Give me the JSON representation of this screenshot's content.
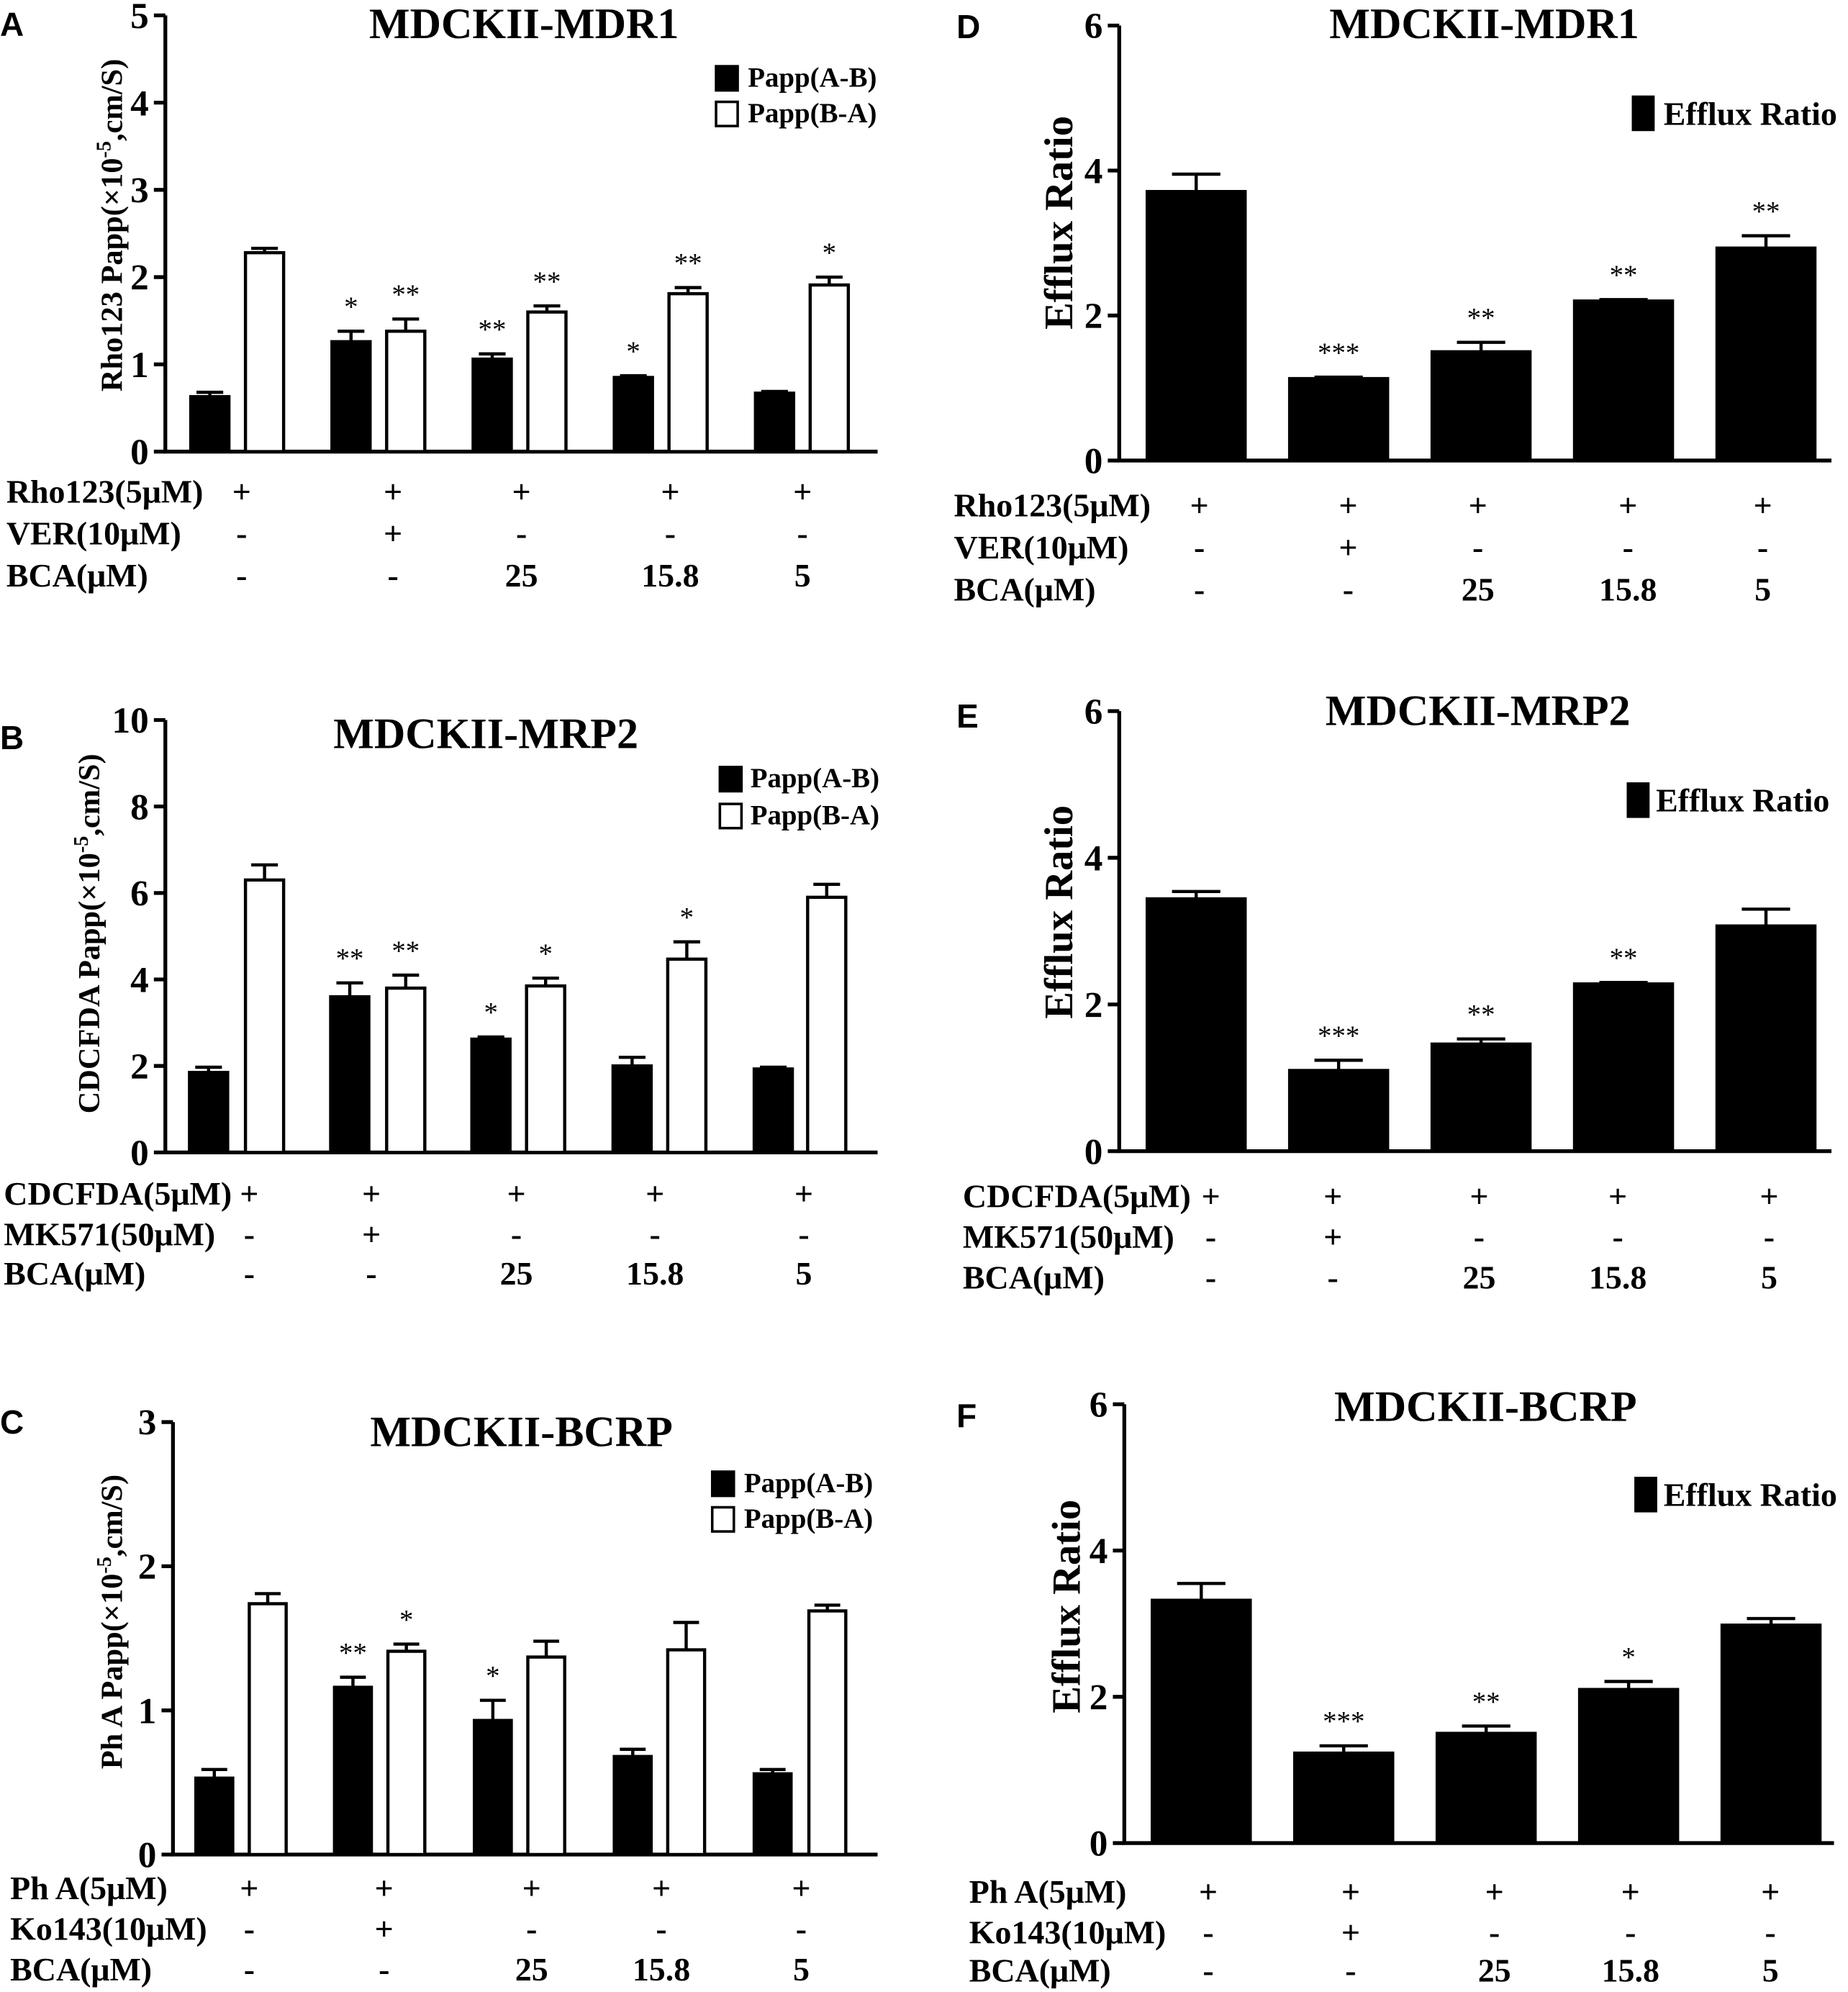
{
  "chart_data": [
    {
      "panel": "A",
      "type": "bar",
      "title": "MDCKII-MDR1",
      "ylabel": {
        "text": "Rho123 Papp(×10",
        "sup": "-5",
        "tail": ",cm/S)"
      },
      "ylim": [
        0,
        5
      ],
      "yticks": [
        0,
        1,
        2,
        3,
        4,
        5
      ],
      "series": [
        {
          "name": "Papp(A-B)",
          "fill": "#000000",
          "values": [
            0.63,
            1.26,
            1.06,
            0.85,
            0.67
          ],
          "errors": [
            0.05,
            0.12,
            0.06,
            0.02,
            0.02
          ],
          "significance": [
            null,
            "*",
            "**",
            "*",
            null
          ]
        },
        {
          "name": "Papp(B-A)",
          "fill": "#ffffff",
          "values": [
            2.28,
            1.38,
            1.6,
            1.81,
            1.91
          ],
          "errors": [
            0.05,
            0.14,
            0.07,
            0.07,
            0.09
          ],
          "significance": [
            null,
            "**",
            "**",
            "**",
            "*"
          ]
        }
      ],
      "treatments": [
        {
          "label": "Rho123(5μM)",
          "values": [
            "+",
            "+",
            "+",
            "+",
            "+"
          ]
        },
        {
          "label": "VER(10μM)",
          "values": [
            "-",
            "+",
            "-",
            "-",
            "-"
          ]
        },
        {
          "label": "BCA(μM)",
          "values": [
            "-",
            "-",
            "25",
            "15.8",
            "5"
          ]
        }
      ]
    },
    {
      "panel": "B",
      "type": "bar",
      "title": "MDCKII-MRP2",
      "ylabel": {
        "text": "CDCFDA Papp(×10",
        "sup": "-5",
        "tail": ",cm/S)"
      },
      "ylim": [
        0,
        10
      ],
      "yticks": [
        0,
        2,
        4,
        6,
        8,
        10
      ],
      "series": [
        {
          "name": "Papp(A-B)",
          "fill": "#000000",
          "values": [
            1.85,
            3.6,
            2.62,
            2.0,
            1.93
          ],
          "errors": [
            0.12,
            0.32,
            0.05,
            0.2,
            0.04
          ],
          "significance": [
            null,
            "**",
            "*",
            null,
            null
          ]
        },
        {
          "name": "Papp(B-A)",
          "fill": "#ffffff",
          "values": [
            6.3,
            3.8,
            3.85,
            4.47,
            5.9
          ],
          "errors": [
            0.35,
            0.3,
            0.18,
            0.4,
            0.3
          ],
          "significance": [
            null,
            "**",
            "*",
            "*",
            null
          ]
        }
      ],
      "treatments": [
        {
          "label": "CDCFDA(5μM)",
          "values": [
            "+",
            "+",
            "+",
            "+",
            "+"
          ]
        },
        {
          "label": "MK571(50μM)",
          "values": [
            "-",
            "+",
            "-",
            "-",
            "-"
          ]
        },
        {
          "label": "BCA(μM)",
          "values": [
            "-",
            "-",
            "25",
            "15.8",
            "5"
          ]
        }
      ]
    },
    {
      "panel": "C",
      "type": "bar",
      "title": "MDCKII-BCRP",
      "ylabel": {
        "text": "Ph A Papp(×10",
        "sup": "-5",
        "tail": ",cm/S)"
      },
      "ylim": [
        0,
        3
      ],
      "yticks": [
        0,
        1,
        2,
        3
      ],
      "series": [
        {
          "name": "Papp(A-B)",
          "fill": "#000000",
          "values": [
            0.53,
            1.16,
            0.93,
            0.68,
            0.56
          ],
          "errors": [
            0.06,
            0.07,
            0.14,
            0.05,
            0.03
          ],
          "significance": [
            null,
            "**",
            "*",
            null,
            null
          ]
        },
        {
          "name": "Papp(B-A)",
          "fill": "#ffffff",
          "values": [
            1.74,
            1.41,
            1.37,
            1.42,
            1.69
          ],
          "errors": [
            0.07,
            0.05,
            0.11,
            0.19,
            0.04
          ],
          "significance": [
            null,
            "*",
            null,
            null,
            null
          ]
        }
      ],
      "treatments": [
        {
          "label": "Ph A(5μM)",
          "values": [
            "+",
            "+",
            "+",
            "+",
            "+"
          ]
        },
        {
          "label": "Ko143(10μM)",
          "values": [
            "-",
            "+",
            "-",
            "-",
            "-"
          ]
        },
        {
          "label": "BCA(μM)",
          "values": [
            "-",
            "-",
            "25",
            "15.8",
            "5"
          ]
        }
      ]
    },
    {
      "panel": "D",
      "type": "bar",
      "title": "MDCKII-MDR1",
      "ylabel": {
        "text": "Efflux Ratio"
      },
      "ylim": [
        0,
        6
      ],
      "yticks": [
        0,
        2,
        4,
        6
      ],
      "series": [
        {
          "name": "Efflux Ratio",
          "fill": "#000000",
          "values": [
            3.71,
            1.13,
            1.5,
            2.2,
            2.93
          ],
          "errors": [
            0.24,
            0.02,
            0.13,
            0.02,
            0.17
          ],
          "significance": [
            null,
            "***",
            "**",
            "**",
            "**"
          ]
        }
      ],
      "treatments": [
        {
          "label": "Rho123(5μM)",
          "values": [
            "+",
            "+",
            "+",
            "+",
            "+"
          ]
        },
        {
          "label": "VER(10μM)",
          "values": [
            "-",
            "+",
            "-",
            "-",
            "-"
          ]
        },
        {
          "label": "BCA(μM)",
          "values": [
            "-",
            "-",
            "25",
            "15.8",
            "5"
          ]
        }
      ]
    },
    {
      "panel": "E",
      "type": "bar",
      "title": "MDCKII-MRP2",
      "ylabel": {
        "text": "Efflux Ratio"
      },
      "ylim": [
        0,
        6
      ],
      "yticks": [
        0,
        2,
        4,
        6
      ],
      "series": [
        {
          "name": "Efflux Ratio",
          "fill": "#000000",
          "values": [
            3.44,
            1.1,
            1.46,
            2.28,
            3.07
          ],
          "errors": [
            0.1,
            0.14,
            0.07,
            0.02,
            0.23
          ],
          "significance": [
            null,
            "***",
            "**",
            "**",
            null
          ]
        }
      ],
      "treatments": [
        {
          "label": "CDCFDA(5μM)",
          "values": [
            "+",
            "+",
            "+",
            "+",
            "+"
          ]
        },
        {
          "label": "MK571(50μM)",
          "values": [
            "-",
            "+",
            "-",
            "-",
            "-"
          ]
        },
        {
          "label": "BCA(μM)",
          "values": [
            "-",
            "-",
            "25",
            "15.8",
            "5"
          ]
        }
      ]
    },
    {
      "panel": "F",
      "type": "bar",
      "title": "MDCKII-BCRP",
      "ylabel": {
        "text": "Efflux Ratio"
      },
      "ylim": [
        0,
        6
      ],
      "yticks": [
        0,
        2,
        4,
        6
      ],
      "series": [
        {
          "name": "Efflux Ratio",
          "fill": "#000000",
          "values": [
            3.32,
            1.23,
            1.5,
            2.1,
            2.98
          ],
          "errors": [
            0.23,
            0.1,
            0.1,
            0.11,
            0.09
          ],
          "significance": [
            null,
            "***",
            "**",
            "*",
            null
          ]
        }
      ],
      "treatments": [
        {
          "label": "Ph A(5μM)",
          "values": [
            "+",
            "+",
            "+",
            "+",
            "+"
          ]
        },
        {
          "label": "Ko143(10μM)",
          "values": [
            "-",
            "+",
            "-",
            "-",
            "-"
          ]
        },
        {
          "label": "BCA(μM)",
          "values": [
            "-",
            "-",
            "25",
            "15.8",
            "5"
          ]
        }
      ]
    }
  ]
}
